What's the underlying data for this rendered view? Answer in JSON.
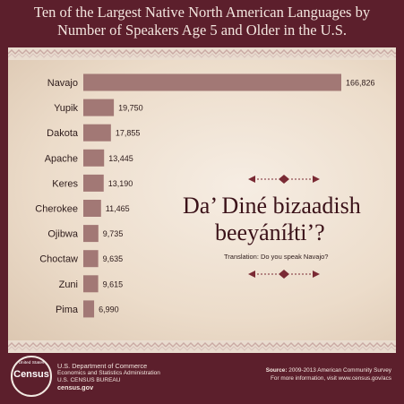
{
  "title_line1": "Ten of the Largest Native North American Languages by",
  "title_line2": "Number of Speakers Age 5 and Older in the U.S.",
  "slogan_line1": "Da’ Diné bizaadish",
  "slogan_line2": "beeyáníłti’?",
  "translation": "Translation: Do you speak Navajo?",
  "footer": {
    "logo_top": "United States",
    "logo_main": "Census",
    "dept_line1": "U.S. Department of Commerce",
    "dept_line2": "Economics and Statistics Administration",
    "dept_line3": "U.S. CENSUS BUREAU",
    "dept_line4": "census.gov",
    "source_label": "Source:",
    "source_text": "2009-2013 American Community Survey",
    "more_info": "For more information, visit www.census.gov/acs"
  },
  "colors": {
    "bar": "#a27875",
    "background": "#5c1f2c",
    "panel": "#f3e8dc"
  },
  "chart_data": {
    "type": "bar",
    "orientation": "horizontal",
    "title": "Ten of the Largest Native North American Languages by Number of Speakers Age 5 and Older in the U.S.",
    "categories": [
      "Navajo",
      "Yupik",
      "Dakota",
      "Apache",
      "Keres",
      "Cherokee",
      "Ojibwa",
      "Choctaw",
      "Zuni",
      "Pima"
    ],
    "values": [
      166826,
      19750,
      17855,
      13445,
      13190,
      11465,
      9735,
      9635,
      9615,
      6990
    ],
    "value_labels": [
      "166,826",
      "19,750",
      "17,855",
      "13,445",
      "13,190",
      "11,465",
      "9,735",
      "9,635",
      "9,615",
      "6,990"
    ],
    "xlabel": "",
    "ylabel": "",
    "grid": false,
    "legend": "none"
  }
}
